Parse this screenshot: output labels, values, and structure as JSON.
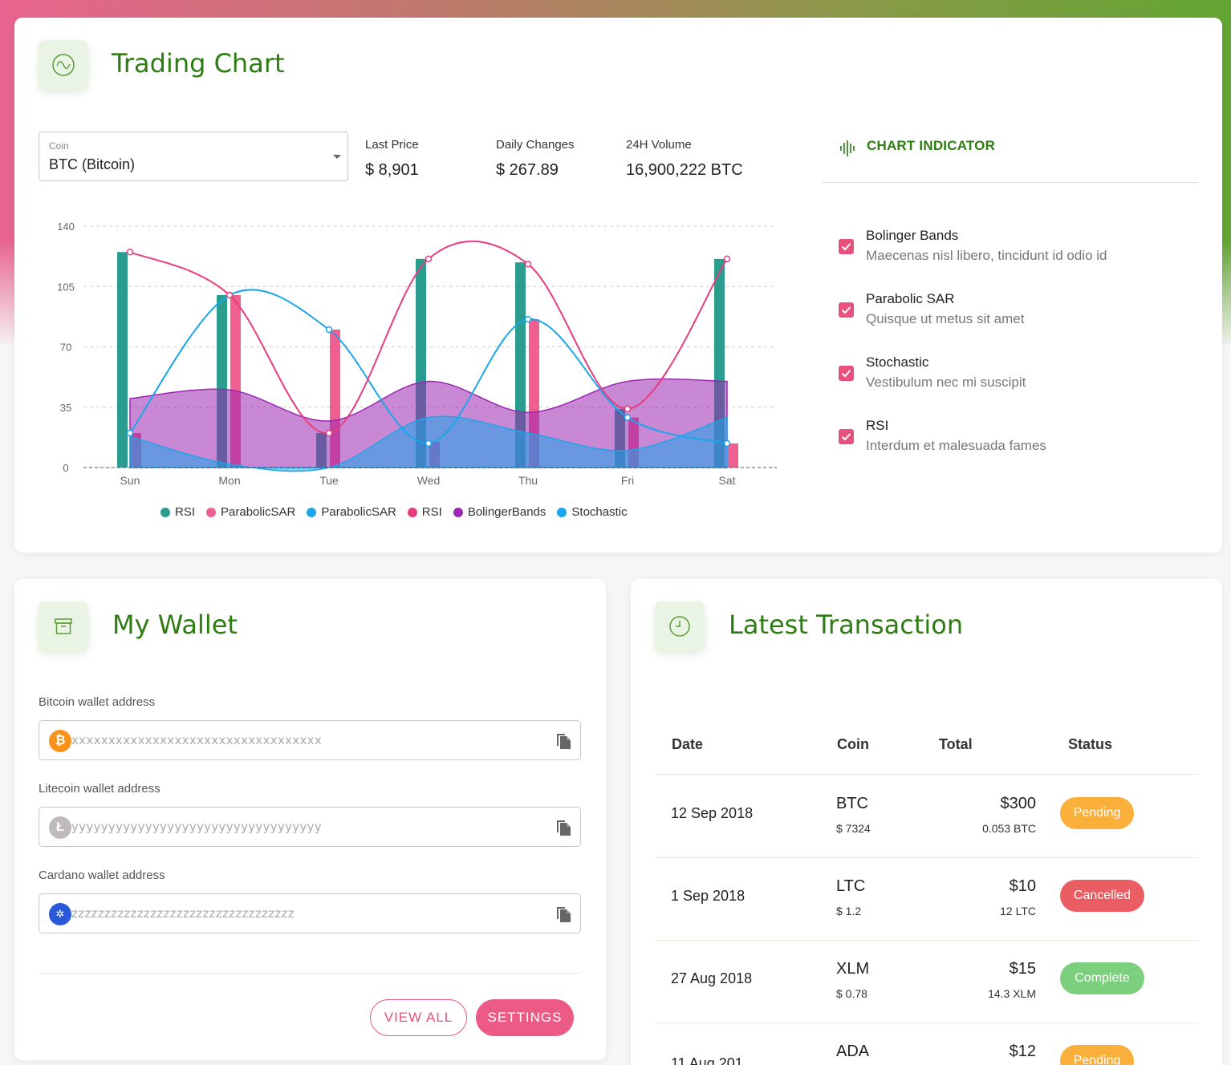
{
  "trading_chart": {
    "title": "Trading Chart",
    "coin_label": "Coin",
    "coin_value": "BTC (Bitcoin)",
    "stats": [
      {
        "label": "Last Price",
        "value": "$ 8,901"
      },
      {
        "label": "Daily Changes",
        "value": "$ 267.89"
      },
      {
        "label": "24H Volume",
        "value": "16,900,222 BTC"
      }
    ],
    "indicator_title": "CHART INDICATOR",
    "indicators": [
      {
        "name": "Bolinger Bands",
        "desc": "Maecenas nisl libero, tincidunt id odio id",
        "checked": true
      },
      {
        "name": "Parabolic SAR",
        "desc": "Quisque ut metus sit amet",
        "checked": true
      },
      {
        "name": "Stochastic",
        "desc": "Vestibulum nec mi suscipit",
        "checked": true
      },
      {
        "name": "RSI",
        "desc": "Interdum et malesuada fames",
        "checked": true
      }
    ]
  },
  "chart_data": {
    "type": "bar",
    "categories": [
      "Sun",
      "Mon",
      "Tue",
      "Wed",
      "Thu",
      "Fri",
      "Sat"
    ],
    "yticks": [
      "0",
      "35",
      "70",
      "105",
      "140"
    ],
    "ylim": [
      0,
      140
    ],
    "grid": true,
    "legend_position": "bottom",
    "series": [
      {
        "name": "RSI",
        "type": "bar",
        "color": "#2a9d8f",
        "values": [
          125,
          100,
          20,
          121,
          119,
          34,
          121
        ]
      },
      {
        "name": "ParabolicSAR",
        "type": "bar",
        "color": "#ef5f8f",
        "values": [
          20,
          100,
          80,
          15,
          86,
          29,
          14
        ]
      },
      {
        "name": "ParabolicSAR",
        "type": "line",
        "color": "#1ba5ea",
        "values": [
          20,
          100,
          80,
          14,
          86,
          29,
          14
        ]
      },
      {
        "name": "RSI",
        "type": "line",
        "color": "#e73c7e",
        "values": [
          125,
          100,
          20,
          121,
          118,
          34,
          121
        ]
      },
      {
        "name": "BolingerBands",
        "type": "area",
        "color": "#9c27b0",
        "values": [
          40,
          45,
          27,
          50,
          32,
          50,
          50
        ]
      },
      {
        "name": "Stochastic",
        "type": "area",
        "color": "#1ba5ea",
        "values": [
          18,
          2,
          0,
          29,
          20,
          10,
          29
        ]
      }
    ]
  },
  "wallet": {
    "title": "My Wallet",
    "fields": [
      {
        "label": "Bitcoin wallet address",
        "value": "xxxxxxxxxxxxxxxxxxxxxxxxxxxxxxxxxx",
        "icon": "bitcoin-icon",
        "color": "#f7931a"
      },
      {
        "label": "Litecoin wallet address",
        "value": "yyyyyyyyyyyyyyyyyyyyyyyyyyyyyyyyyy",
        "icon": "litecoin-icon",
        "color": "#bfbbbb"
      },
      {
        "label": "Cardano wallet address",
        "value": "zzzzzzzzzzzzzzzzzzzzzzzzzzzzzzzzzz",
        "icon": "cardano-icon",
        "color": "#2a5ada"
      }
    ],
    "view_all": "VIEW ALL",
    "settings": "SETTINGS"
  },
  "transactions": {
    "title": "Latest Transaction",
    "headers": [
      "Date",
      "Coin",
      "Total",
      "Status"
    ],
    "rows": [
      {
        "date": "12 Sep 2018",
        "coin": "BTC",
        "coin_price": "$ 7324",
        "total": "$300",
        "amount": "0.053 BTC",
        "status": "Pending",
        "status_color": "#fbb03b"
      },
      {
        "date": "1 Sep 2018",
        "coin": "LTC",
        "coin_price": "$ 1.2",
        "total": "$10",
        "amount": "12 LTC",
        "status": "Cancelled",
        "status_color": "#ea5e63"
      },
      {
        "date": "27 Aug 2018",
        "coin": "XLM",
        "coin_price": "$ 0.78",
        "total": "$15",
        "amount": "14.3 XLM",
        "status": "Complete",
        "status_color": "#7ccf7c"
      },
      {
        "date": "11 Aug 201",
        "coin": "ADA",
        "coin_price": "",
        "total": "$12",
        "amount": "",
        "status": "Pending",
        "status_color": "#fbb03b"
      }
    ]
  }
}
